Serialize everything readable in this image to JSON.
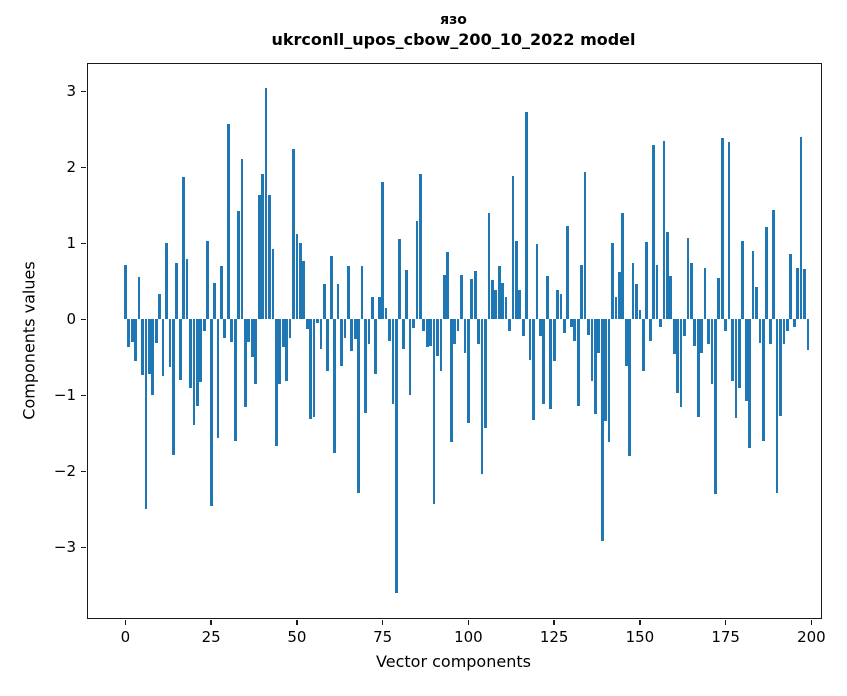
{
  "chart_data": {
    "type": "bar",
    "title_line1": "язо",
    "title_line2": "ukrconll_upos_cbow_200_10_2022 model",
    "xlabel": "Vector components",
    "ylabel": "Components values",
    "x_ticks": [
      0,
      25,
      50,
      75,
      100,
      125,
      150,
      175,
      200
    ],
    "y_ticks": [
      3,
      2,
      1,
      0,
      -1,
      -2,
      -3
    ],
    "xlim": [
      -10.9,
      202.8
    ],
    "ylim": [
      -3.93,
      3.36
    ],
    "grid": false,
    "legend": "none",
    "bar_color": "#1f77b4",
    "bar_width_units": 0.8,
    "n_components": 200,
    "values": [
      0.71,
      -0.36,
      -0.3,
      -0.55,
      0.56,
      -0.73,
      -2.5,
      -0.72,
      -0.99,
      -0.31,
      0.33,
      -0.75,
      1.0,
      -0.63,
      -1.78,
      0.74,
      -0.8,
      1.87,
      0.8,
      -0.9,
      -1.39,
      -1.14,
      -0.82,
      -0.15,
      1.03,
      -2.46,
      0.48,
      -1.56,
      0.7,
      -0.25,
      2.57,
      -0.3,
      -1.6,
      1.43,
      2.11,
      -1.16,
      -0.3,
      -0.5,
      -0.85,
      1.64,
      1.91,
      3.05,
      1.64,
      0.92,
      -1.67,
      -0.85,
      -0.37,
      -0.81,
      -0.25,
      2.24,
      1.12,
      1.01,
      0.77,
      -0.13,
      -1.31,
      -1.28,
      -0.05,
      -0.39,
      0.47,
      -0.68,
      0.83,
      -1.76,
      0.46,
      -0.61,
      -0.25,
      0.7,
      -0.42,
      -0.26,
      -2.28,
      0.7,
      -1.23,
      -0.33,
      0.3,
      -0.72,
      0.29,
      1.81,
      0.15,
      -0.29,
      -1.12,
      -3.6,
      1.06,
      -0.39,
      0.65,
      -0.99,
      -0.12,
      1.29,
      1.91,
      -0.15,
      -0.37,
      -0.35,
      -2.43,
      -0.48,
      -0.68,
      0.59,
      0.89,
      -1.62,
      -0.33,
      -0.15,
      0.59,
      -0.44,
      -1.36,
      0.53,
      0.64,
      -0.33,
      -2.04,
      -1.43,
      1.4,
      0.52,
      0.38,
      0.7,
      0.48,
      0.3,
      -0.15,
      1.88,
      1.03,
      0.39,
      -0.22,
      2.73,
      -0.53,
      -1.32,
      0.99,
      -0.22,
      -1.12,
      0.57,
      -1.18,
      -0.55,
      0.39,
      0.33,
      -0.18,
      1.23,
      -0.1,
      -0.29,
      -1.14,
      0.72,
      1.94,
      -0.2,
      -0.81,
      -1.24,
      -0.44,
      -2.92,
      -1.34,
      -1.62,
      1.01,
      0.3,
      0.62,
      1.4,
      -0.61,
      -1.8,
      0.74,
      0.47,
      0.12,
      -0.68,
      1.02,
      -0.29,
      2.3,
      0.71,
      -0.1,
      2.35,
      1.15,
      0.57,
      -0.45,
      -0.97,
      -1.16,
      -0.22,
      1.07,
      0.74,
      -0.35,
      -1.29,
      -0.44,
      0.68,
      -0.33,
      -0.85,
      -2.3,
      0.55,
      2.38,
      -0.15,
      2.34,
      -0.81,
      -1.3,
      -0.9,
      1.03,
      -1.07,
      -1.69,
      0.9,
      0.42,
      -0.31,
      -1.6,
      1.21,
      -0.33,
      1.44,
      -2.28,
      -1.27,
      -0.33,
      -0.16,
      0.86,
      -0.1,
      0.68,
      2.4,
      0.66,
      -0.4
    ]
  }
}
